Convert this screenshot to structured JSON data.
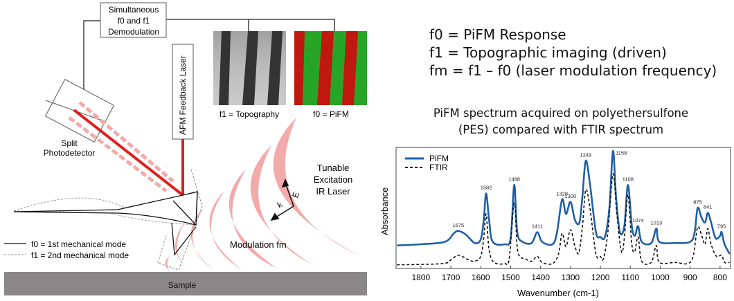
{
  "diagram": {
    "demod_box": [
      "Simultaneous",
      "f0 and f1",
      "Demodulation"
    ],
    "feedback_laser": "AFM Feedback Laser",
    "photodetector": [
      "Split",
      "Photodetector"
    ],
    "topography_caption": "f1 = Topography",
    "pifm_caption": "f0 = PiFM",
    "ir_laser": [
      "Tunable",
      "Excitation",
      "IR Laser"
    ],
    "modulation": "Modulation fm",
    "vector_e": "E",
    "vector_k": "k",
    "legend": [
      "f0 = 1st mechanical mode",
      "f1 = 2nd mechanical mode"
    ],
    "sample": "Sample",
    "colors": {
      "laser": "#e0201c",
      "wave": "#f2aaaa",
      "sample": "#8a8788",
      "pifm_red": "#c0170f",
      "pifm_green": "#27a527"
    }
  },
  "equations": [
    "f0 = PiFM Response",
    "f1 = Topographic imaging (driven)",
    "fm = f1 – f0 (laser modulation frequency)"
  ],
  "chart_data": {
    "type": "line",
    "title": [
      "PiFM spectrum acquired on polyethersulfone",
      "(PES) compared with FTIR spectrum"
    ],
    "xlabel": "Wavenumber (cm-1)",
    "ylabel": "Absorbance",
    "xlim": [
      1883,
      765
    ],
    "ylim": [
      0,
      1
    ],
    "x_reversed": true,
    "xticks": [
      1800,
      1700,
      1600,
      1500,
      1400,
      1300,
      1200,
      1100,
      1000,
      900,
      800
    ],
    "grid": false,
    "legend_position": "top-left",
    "series": [
      {
        "name": "PiFM",
        "color": "#1f5fa8",
        "style": "solid",
        "points": [
          [
            1880,
            0.19
          ],
          [
            1800,
            0.2
          ],
          [
            1720,
            0.22
          ],
          [
            1690,
            0.29
          ],
          [
            1675,
            0.31
          ],
          [
            1650,
            0.28
          ],
          [
            1620,
            0.21
          ],
          [
            1600,
            0.24
          ],
          [
            1590,
            0.4
          ],
          [
            1582,
            0.62
          ],
          [
            1572,
            0.4
          ],
          [
            1560,
            0.22
          ],
          [
            1520,
            0.2
          ],
          [
            1500,
            0.25
          ],
          [
            1488,
            0.69
          ],
          [
            1478,
            0.3
          ],
          [
            1460,
            0.22
          ],
          [
            1430,
            0.21
          ],
          [
            1411,
            0.3
          ],
          [
            1395,
            0.22
          ],
          [
            1360,
            0.2
          ],
          [
            1345,
            0.3
          ],
          [
            1328,
            0.57
          ],
          [
            1315,
            0.45
          ],
          [
            1300,
            0.55
          ],
          [
            1285,
            0.4
          ],
          [
            1270,
            0.38
          ],
          [
            1260,
            0.6
          ],
          [
            1249,
            0.89
          ],
          [
            1235,
            0.7
          ],
          [
            1215,
            0.3
          ],
          [
            1200,
            0.26
          ],
          [
            1185,
            0.26
          ],
          [
            1170,
            0.5
          ],
          [
            1158,
            0.97
          ],
          [
            1148,
            0.6
          ],
          [
            1135,
            0.3
          ],
          [
            1120,
            0.35
          ],
          [
            1108,
            0.69
          ],
          [
            1095,
            0.35
          ],
          [
            1085,
            0.27
          ],
          [
            1074,
            0.35
          ],
          [
            1062,
            0.22
          ],
          [
            1030,
            0.21
          ],
          [
            1013,
            0.33
          ],
          [
            1003,
            0.22
          ],
          [
            950,
            0.21
          ],
          [
            900,
            0.22
          ],
          [
            885,
            0.3
          ],
          [
            875,
            0.5
          ],
          [
            862,
            0.42
          ],
          [
            850,
            0.38
          ],
          [
            841,
            0.46
          ],
          [
            830,
            0.38
          ],
          [
            815,
            0.25
          ],
          [
            800,
            0.27
          ],
          [
            795,
            0.3
          ],
          [
            785,
            0.2
          ],
          [
            768,
            0.12
          ]
        ]
      },
      {
        "name": "FTIR",
        "color": "#111111",
        "style": "dashed",
        "points": [
          [
            1880,
            0.03
          ],
          [
            1730,
            0.04
          ],
          [
            1700,
            0.07
          ],
          [
            1675,
            0.11
          ],
          [
            1640,
            0.07
          ],
          [
            1620,
            0.06
          ],
          [
            1600,
            0.1
          ],
          [
            1590,
            0.25
          ],
          [
            1582,
            0.45
          ],
          [
            1572,
            0.15
          ],
          [
            1555,
            0.05
          ],
          [
            1520,
            0.04
          ],
          [
            1505,
            0.08
          ],
          [
            1488,
            0.54
          ],
          [
            1476,
            0.14
          ],
          [
            1450,
            0.08
          ],
          [
            1430,
            0.06
          ],
          [
            1411,
            0.1
          ],
          [
            1395,
            0.05
          ],
          [
            1360,
            0.04
          ],
          [
            1340,
            0.12
          ],
          [
            1328,
            0.29
          ],
          [
            1315,
            0.18
          ],
          [
            1300,
            0.32
          ],
          [
            1285,
            0.18
          ],
          [
            1272,
            0.13
          ],
          [
            1260,
            0.35
          ],
          [
            1249,
            0.65
          ],
          [
            1235,
            0.5
          ],
          [
            1215,
            0.12
          ],
          [
            1200,
            0.1
          ],
          [
            1190,
            0.08
          ],
          [
            1175,
            0.3
          ],
          [
            1158,
            0.78
          ],
          [
            1145,
            0.45
          ],
          [
            1130,
            0.14
          ],
          [
            1120,
            0.25
          ],
          [
            1108,
            0.61
          ],
          [
            1095,
            0.2
          ],
          [
            1085,
            0.14
          ],
          [
            1074,
            0.26
          ],
          [
            1062,
            0.06
          ],
          [
            1030,
            0.05
          ],
          [
            1013,
            0.19
          ],
          [
            1003,
            0.05
          ],
          [
            950,
            0.05
          ],
          [
            910,
            0.04
          ],
          [
            890,
            0.1
          ],
          [
            875,
            0.34
          ],
          [
            860,
            0.26
          ],
          [
            850,
            0.2
          ],
          [
            841,
            0.33
          ],
          [
            830,
            0.2
          ],
          [
            812,
            0.1
          ],
          [
            795,
            0.11
          ],
          [
            785,
            0.05
          ],
          [
            768,
            0.05
          ]
        ]
      }
    ],
    "peak_labels": [
      {
        "x": 1675,
        "y": 0.31,
        "label": "1675"
      },
      {
        "x": 1582,
        "y": 0.62,
        "label": "1582"
      },
      {
        "x": 1488,
        "y": 0.69,
        "label": "1488"
      },
      {
        "x": 1411,
        "y": 0.3,
        "label": "1411"
      },
      {
        "x": 1328,
        "y": 0.57,
        "label": "1328"
      },
      {
        "x": 1300,
        "y": 0.55,
        "label": "1300"
      },
      {
        "x": 1249,
        "y": 0.89,
        "label": "1249"
      },
      {
        "x": 1158,
        "y": 0.97,
        "label": "1158"
      },
      {
        "x": 1108,
        "y": 0.69,
        "label": "1108"
      },
      {
        "x": 1074,
        "y": 0.35,
        "label": "1074"
      },
      {
        "x": 1013,
        "y": 0.33,
        "label": "1013"
      },
      {
        "x": 875,
        "y": 0.5,
        "label": "875"
      },
      {
        "x": 841,
        "y": 0.46,
        "label": "841"
      },
      {
        "x": 795,
        "y": 0.3,
        "label": "795"
      }
    ]
  }
}
